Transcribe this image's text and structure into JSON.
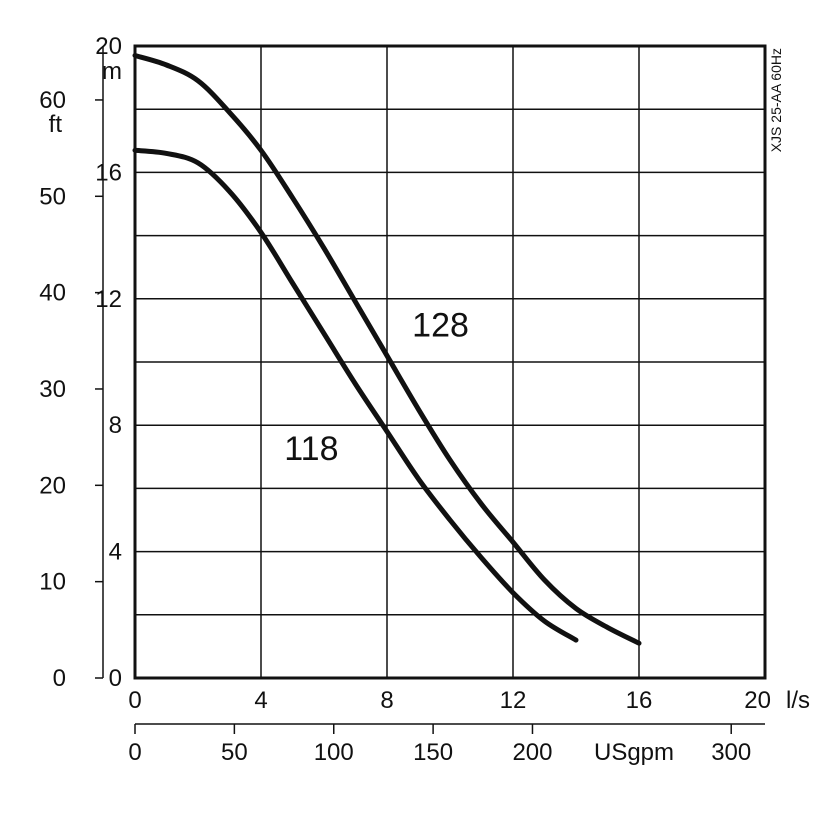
{
  "chart_data": {
    "type": "line",
    "model_label": "XJS 25-AA 60Hz",
    "x_axis_primary": {
      "unit": "l/s",
      "range": [
        0,
        20
      ],
      "ticks": [
        0,
        4,
        8,
        12,
        16,
        20
      ],
      "tick_labels": [
        "0",
        "4",
        "8",
        "12",
        "16",
        "20"
      ]
    },
    "x_axis_secondary": {
      "unit": "USgpm",
      "range": [
        0,
        317
      ],
      "ticks": [
        0,
        50,
        100,
        150,
        200,
        300
      ],
      "tick_labels": [
        "0",
        "50",
        "100",
        "150",
        "200",
        "300"
      ]
    },
    "y_axis_primary": {
      "unit": "m",
      "range": [
        0,
        20
      ],
      "ticks": [
        0,
        4,
        8,
        12,
        16,
        20
      ],
      "tick_labels": [
        "0",
        "4",
        "8",
        "12",
        "16",
        "20"
      ]
    },
    "y_axis_secondary": {
      "unit": "ft",
      "range": [
        0,
        65.6
      ],
      "ticks": [
        0,
        10,
        20,
        30,
        40,
        50,
        60
      ],
      "tick_labels": [
        "0",
        "10",
        "20",
        "30",
        "40",
        "50",
        "60"
      ]
    },
    "grid": true,
    "grid_x_step": 4,
    "grid_y_step": 2,
    "series": [
      {
        "name": "128",
        "label": "128",
        "label_at": [
          9.7,
          10.8
        ],
        "points": [
          [
            0,
            19.7
          ],
          [
            1,
            19.4
          ],
          [
            2,
            18.9
          ],
          [
            3,
            17.9
          ],
          [
            4,
            16.7
          ],
          [
            5,
            15.2
          ],
          [
            6,
            13.6
          ],
          [
            7,
            11.9
          ],
          [
            8,
            10.2
          ],
          [
            9,
            8.5
          ],
          [
            10,
            6.9
          ],
          [
            11,
            5.5
          ],
          [
            12,
            4.3
          ],
          [
            13,
            3.1
          ],
          [
            14,
            2.2
          ],
          [
            15,
            1.6
          ],
          [
            16,
            1.1
          ]
        ]
      },
      {
        "name": "118",
        "label": "118",
        "label_at": [
          5.6,
          6.9
        ],
        "points": [
          [
            0,
            16.7
          ],
          [
            1,
            16.6
          ],
          [
            2,
            16.3
          ],
          [
            3,
            15.4
          ],
          [
            4,
            14.1
          ],
          [
            5,
            12.5
          ],
          [
            6,
            10.9
          ],
          [
            7,
            9.3
          ],
          [
            8,
            7.8
          ],
          [
            9,
            6.3
          ],
          [
            10,
            5.0
          ],
          [
            11,
            3.8
          ],
          [
            12,
            2.7
          ],
          [
            13,
            1.8
          ],
          [
            14,
            1.2
          ]
        ]
      }
    ]
  }
}
